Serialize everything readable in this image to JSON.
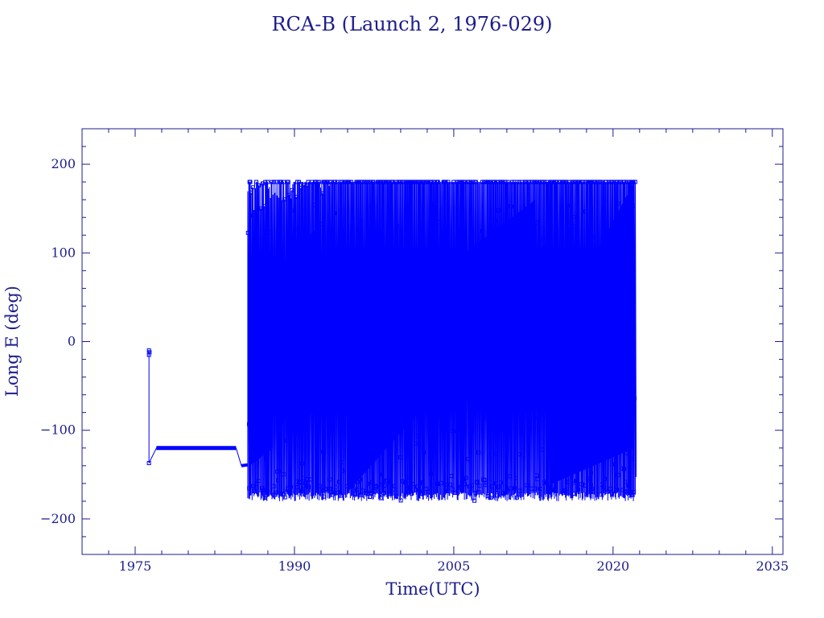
{
  "chart_data": {
    "type": "scatter",
    "title": "RCA-B (Launch 2, 1976-029)",
    "xlabel": "Time(UTC)",
    "ylabel": "Long E (deg)",
    "xlim": [
      1970,
      2036
    ],
    "ylim": [
      -240,
      240
    ],
    "xticks": [
      1975,
      1990,
      2005,
      2020,
      2035
    ],
    "yticks": [
      -200,
      -100,
      0,
      100,
      200
    ],
    "grid": false,
    "legend": "none",
    "series_color": "#0000ff",
    "axis_color": "#1c1c8c",
    "segments": [
      {
        "kind": "points",
        "points": [
          [
            1976.3,
            -10
          ],
          [
            1976.3,
            -15
          ],
          [
            1976.35,
            -12
          ],
          [
            1976.3,
            -137
          ]
        ]
      },
      {
        "kind": "line",
        "points": [
          [
            1976.3,
            -137
          ],
          [
            1977.0,
            -120
          ],
          [
            1984.5,
            -120
          ],
          [
            1985.0,
            -140
          ],
          [
            1985.6,
            -138
          ]
        ]
      },
      {
        "kind": "drift",
        "start": 1985.6,
        "end": 2022.1,
        "ymin": -180,
        "ymax": 180
      }
    ]
  }
}
